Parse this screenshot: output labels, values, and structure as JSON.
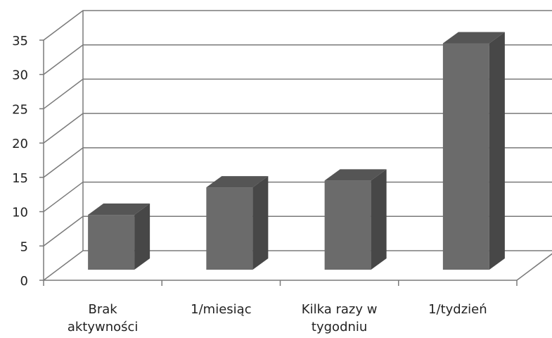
{
  "chart_data": {
    "type": "bar",
    "style": "3d-column",
    "categories": [
      [
        "Brak",
        "aktywności"
      ],
      [
        "1/miesiąc"
      ],
      [
        "Kilka razy w",
        "tygodniu"
      ],
      [
        "1/tydzień"
      ]
    ],
    "values": [
      8,
      12,
      13,
      33
    ],
    "ylim": [
      0,
      35
    ],
    "yticks": [
      "0",
      "5",
      "10",
      "15",
      "20",
      "25",
      "30",
      "35"
    ],
    "grid": true,
    "legend": "none",
    "colors": {
      "bar_front": "#6b6b6b",
      "bar_side": "#474747",
      "bar_top": "#555555",
      "grid": "#7a7a7a"
    }
  }
}
